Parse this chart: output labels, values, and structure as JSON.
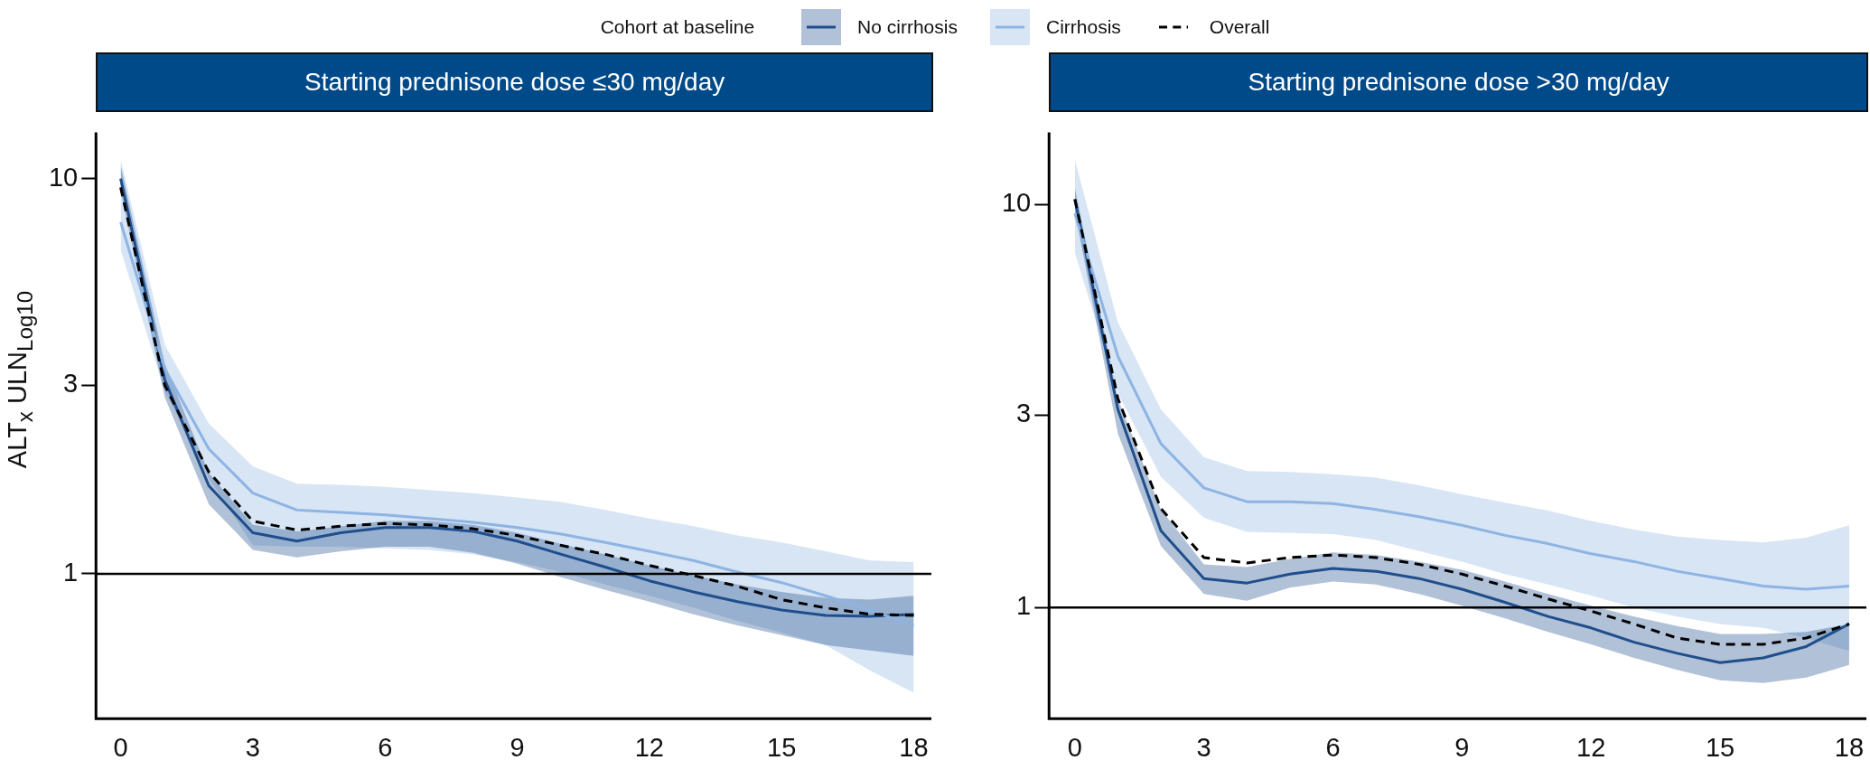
{
  "chart_data": [
    {
      "type": "line",
      "title": "Starting prednisone dose ≤30 mg/day",
      "ylabel": "ALT$_{x}$ ULN$_{Log10}$",
      "legend_title": "Cohort at baseline",
      "legend": "top",
      "log": "y",
      "grid": false,
      "marker": "none",
      "x": [
        0,
        1,
        2,
        3,
        4,
        5,
        6,
        7,
        8,
        9,
        10,
        11,
        12,
        13,
        14,
        15,
        16,
        17,
        18
      ],
      "xlim": [
        -0.56,
        18.4
      ],
      "xticks": [
        0,
        3,
        6,
        9,
        12,
        15,
        18
      ],
      "ylim": [
        0.43,
        13.1
      ],
      "yticks": [
        1,
        3,
        10
      ],
      "ref_lines": [
        {
          "axis": "y",
          "value": 1,
          "color": "#000000"
        }
      ],
      "series": [
        {
          "name": "No cirrhosis",
          "color": "#1f4e8c",
          "line_style": "solid",
          "values": [
            10.0,
            3.1,
            1.67,
            1.27,
            1.21,
            1.27,
            1.31,
            1.31,
            1.28,
            1.21,
            1.12,
            1.04,
            0.96,
            0.9,
            0.85,
            0.81,
            0.785,
            0.78,
            0.79
          ],
          "lower": [
            9.3,
            2.8,
            1.5,
            1.15,
            1.1,
            1.14,
            1.17,
            1.17,
            1.13,
            1.06,
            0.98,
            0.91,
            0.85,
            0.79,
            0.74,
            0.7,
            0.66,
            0.64,
            0.62
          ],
          "upper": [
            10.8,
            3.4,
            1.8,
            1.33,
            1.28,
            1.32,
            1.36,
            1.36,
            1.33,
            1.27,
            1.19,
            1.12,
            1.05,
            0.99,
            0.94,
            0.9,
            0.87,
            0.86,
            0.88
          ]
        },
        {
          "name": "Cirrhosis",
          "color": "#8db4e2",
          "line_style": "solid",
          "values": [
            7.76,
            3.3,
            2.07,
            1.6,
            1.45,
            1.43,
            1.41,
            1.38,
            1.35,
            1.31,
            1.26,
            1.2,
            1.14,
            1.08,
            1.01,
            0.95,
            0.88,
            0.81,
            0.74
          ],
          "lower": [
            6.6,
            2.9,
            1.75,
            1.18,
            1.17,
            1.17,
            1.16,
            1.15,
            1.12,
            1.07,
            1.01,
            0.94,
            0.88,
            0.82,
            0.76,
            0.71,
            0.66,
            0.57,
            0.5
          ],
          "upper": [
            11.2,
            3.8,
            2.4,
            1.87,
            1.69,
            1.68,
            1.66,
            1.63,
            1.6,
            1.56,
            1.52,
            1.45,
            1.38,
            1.32,
            1.25,
            1.2,
            1.14,
            1.08,
            1.07
          ]
        },
        {
          "name": "Overall",
          "color": "#000000",
          "line_style": "dashed",
          "values": [
            9.5,
            3.0,
            1.81,
            1.36,
            1.29,
            1.32,
            1.34,
            1.33,
            1.3,
            1.25,
            1.18,
            1.12,
            1.05,
            0.99,
            0.93,
            0.86,
            0.82,
            0.79,
            0.785
          ]
        }
      ]
    },
    {
      "type": "line",
      "title": "Starting prednisone dose >30 mg/day",
      "log": "y",
      "grid": false,
      "marker": "none",
      "legend": false,
      "x": [
        0,
        1,
        2,
        3,
        4,
        5,
        6,
        7,
        8,
        9,
        10,
        11,
        12,
        13,
        14,
        15,
        16,
        17,
        18
      ],
      "xlim": [
        -0.6,
        18.4
      ],
      "xticks": [
        0,
        3,
        6,
        9,
        12,
        15,
        18
      ],
      "ylim": [
        0.53,
        15.1
      ],
      "yticks": [
        1,
        3,
        10
      ],
      "ref_lines": [
        {
          "axis": "y",
          "value": 1,
          "color": "#000000"
        }
      ],
      "series": [
        {
          "color": "#1f4e8c",
          "line_style": "solid",
          "values": [
            10.3,
            3.1,
            1.55,
            1.18,
            1.15,
            1.21,
            1.25,
            1.23,
            1.18,
            1.11,
            1.03,
            0.95,
            0.89,
            0.82,
            0.77,
            0.73,
            0.75,
            0.8,
            0.91
          ],
          "lower": [
            9.6,
            2.7,
            1.42,
            1.08,
            1.04,
            1.12,
            1.16,
            1.14,
            1.08,
            1.01,
            0.94,
            0.87,
            0.81,
            0.75,
            0.7,
            0.66,
            0.65,
            0.67,
            0.72
          ],
          "upper": [
            11.0,
            3.3,
            1.75,
            1.28,
            1.26,
            1.32,
            1.37,
            1.35,
            1.3,
            1.24,
            1.16,
            1.08,
            1.01,
            0.95,
            0.9,
            0.86,
            0.86,
            0.87,
            0.91
          ]
        },
        {
          "color": "#8db4e2",
          "line_style": "solid",
          "values": [
            9.5,
            4.2,
            2.55,
            1.98,
            1.83,
            1.83,
            1.81,
            1.75,
            1.68,
            1.6,
            1.51,
            1.44,
            1.36,
            1.3,
            1.23,
            1.18,
            1.13,
            1.11,
            1.13
          ],
          "lower": [
            7.6,
            3.4,
            2.11,
            1.67,
            1.54,
            1.53,
            1.52,
            1.47,
            1.38,
            1.3,
            1.21,
            1.14,
            1.07,
            1.0,
            0.95,
            0.91,
            0.89,
            0.84,
            0.78
          ],
          "upper": [
            12.9,
            5.1,
            3.1,
            2.36,
            2.18,
            2.17,
            2.14,
            2.1,
            2.01,
            1.91,
            1.82,
            1.74,
            1.64,
            1.56,
            1.5,
            1.47,
            1.45,
            1.49,
            1.6
          ]
        },
        {
          "color": "#000000",
          "line_style": "dashed",
          "values": [
            10.3,
            3.3,
            1.76,
            1.33,
            1.29,
            1.33,
            1.35,
            1.33,
            1.28,
            1.21,
            1.13,
            1.05,
            0.98,
            0.91,
            0.84,
            0.81,
            0.81,
            0.84,
            0.91
          ]
        }
      ]
    }
  ]
}
